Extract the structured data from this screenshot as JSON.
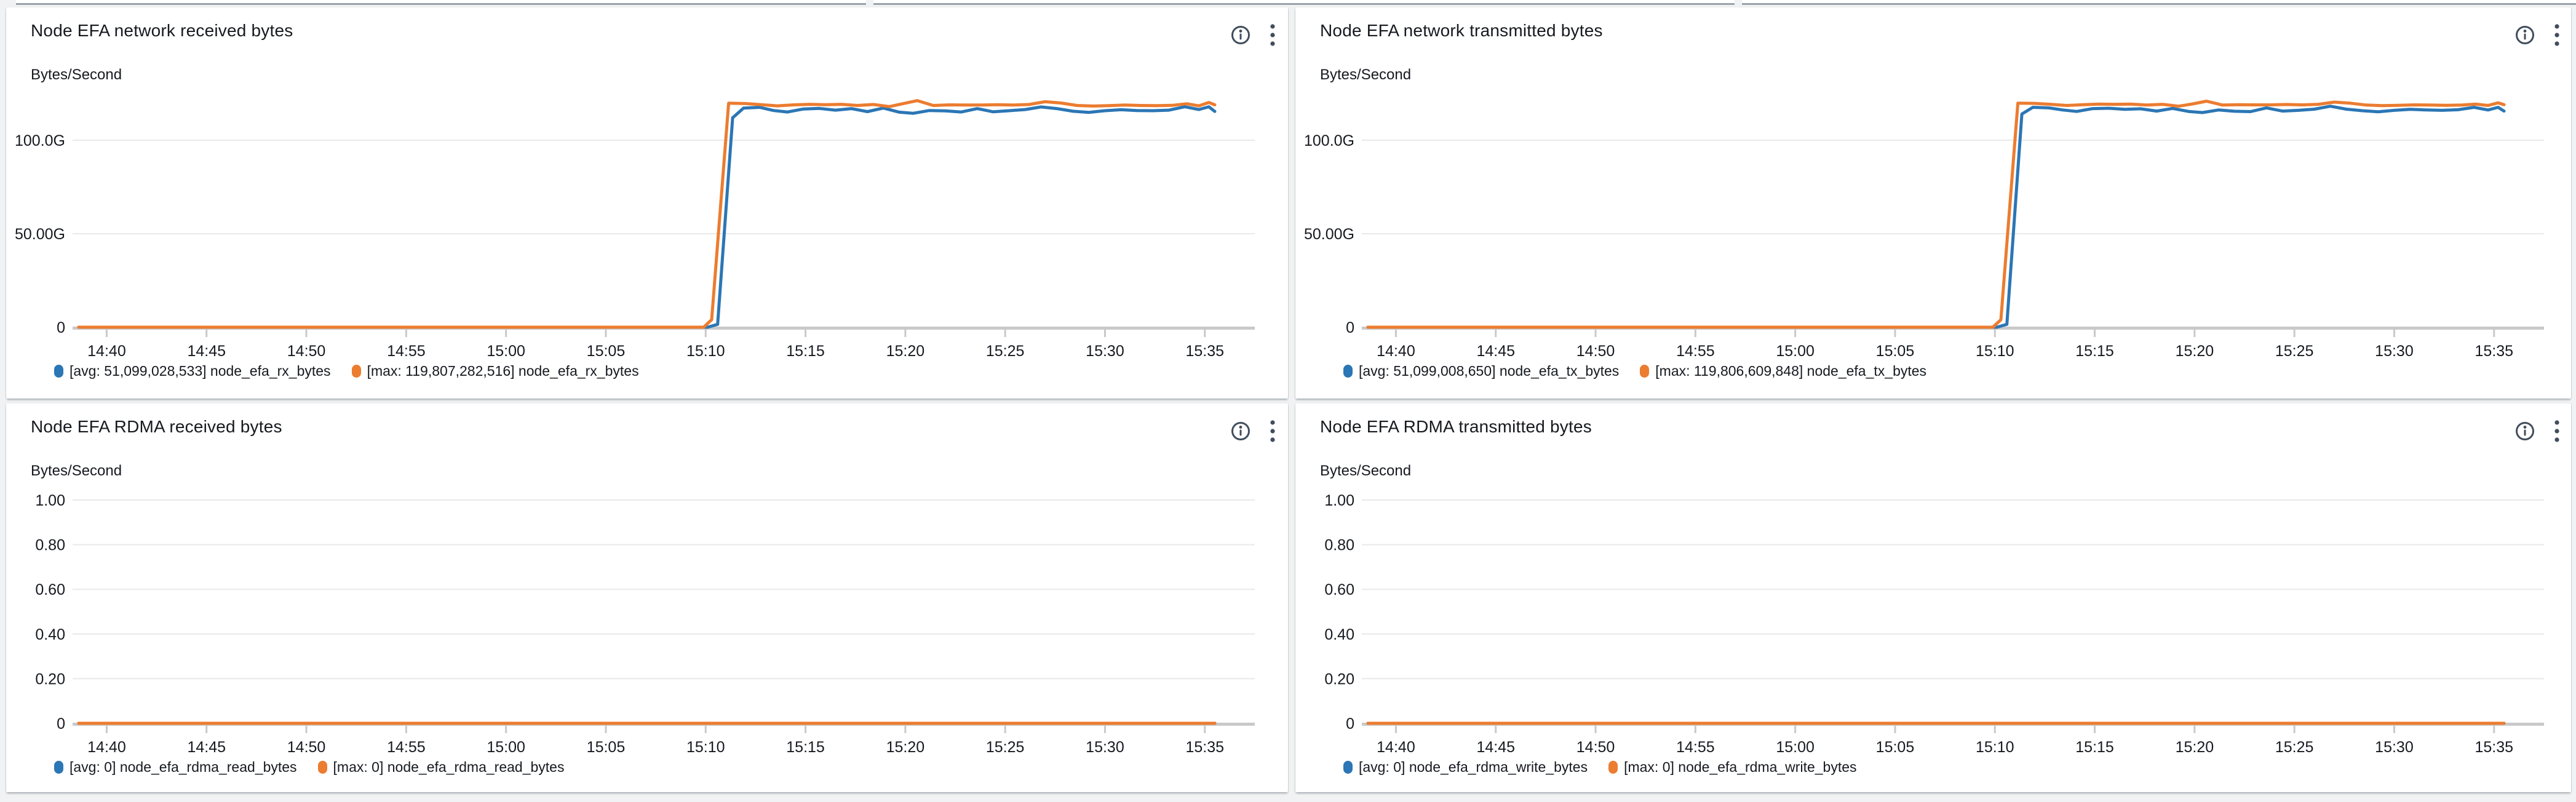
{
  "colors": {
    "page_bg": "#f1f2f3",
    "card_bg": "#ffffff",
    "series_avg": "#2b76b5",
    "series_max": "#ec7c30",
    "grid": "#e9e9e9",
    "axis": "#c9c9c9",
    "text": "#16191f",
    "icon": "#414d5c"
  },
  "chart_data": [
    {
      "type": "line",
      "title": "Node EFA network received bytes",
      "ylabel": "Bytes/Second",
      "ylim": [
        0,
        150000000000
      ],
      "y_ticks": [
        {
          "label": "100.0G",
          "value": 100
        },
        {
          "label": "50.00G",
          "value": 50
        },
        {
          "label": "0",
          "value": 0
        }
      ],
      "x_ticks": [
        "14:40",
        "14:45",
        "14:50",
        "14:55",
        "15:00",
        "15:05",
        "15:10",
        "15:15",
        "15:20",
        "15:25",
        "15:30",
        "15:35"
      ],
      "x_tick_times": [
        880,
        885,
        890,
        895,
        900,
        905,
        910,
        915,
        920,
        925,
        930,
        935
      ],
      "t_domain": [
        878.6,
        935.5
      ],
      "grid": true,
      "legend_position": "bottom",
      "legend": [
        {
          "label": "[avg: 51,099,028,533] node_efa_rx_bytes",
          "color": "#2b76b5"
        },
        {
          "label": "[max: 119,807,282,516] node_efa_rx_bytes",
          "color": "#ec7c30"
        }
      ],
      "value_unit": "G = 10^9 bytes/second",
      "series": [
        {
          "name": "avg node_efa_rx_bytes",
          "color": "#2b76b5",
          "points": [
            [
              878.6,
              0
            ],
            [
              909.5,
              0
            ],
            [
              910.1,
              0
            ],
            [
              910.6,
              1.5
            ],
            [
              911.35,
              112
            ],
            [
              911.9,
              117.2
            ],
            [
              912.7,
              117.6
            ],
            [
              913.4,
              115.9
            ],
            [
              914.1,
              115.1
            ],
            [
              914.9,
              116.7
            ],
            [
              915.7,
              117.0
            ],
            [
              916.5,
              116.1
            ],
            [
              917.3,
              116.9
            ],
            [
              918.1,
              115.3
            ],
            [
              918.9,
              117.2
            ],
            [
              919.7,
              115.0
            ],
            [
              920.4,
              114.4
            ],
            [
              921.2,
              115.9
            ],
            [
              922.0,
              115.7
            ],
            [
              922.8,
              115.1
            ],
            [
              923.6,
              116.9
            ],
            [
              924.4,
              115.2
            ],
            [
              925.2,
              115.8
            ],
            [
              926.0,
              116.4
            ],
            [
              926.8,
              117.8
            ],
            [
              927.6,
              116.9
            ],
            [
              928.4,
              115.5
            ],
            [
              929.2,
              114.9
            ],
            [
              930.0,
              115.8
            ],
            [
              930.8,
              116.3
            ],
            [
              931.6,
              115.9
            ],
            [
              932.4,
              115.8
            ],
            [
              933.2,
              116.1
            ],
            [
              934.0,
              117.9
            ],
            [
              934.7,
              116.4
            ],
            [
              935.2,
              117.9
            ],
            [
              935.5,
              115.4
            ]
          ]
        },
        {
          "name": "max node_efa_rx_bytes",
          "color": "#ec7c30",
          "points": [
            [
              878.6,
              0
            ],
            [
              909.3,
              0
            ],
            [
              909.9,
              0
            ],
            [
              910.3,
              4
            ],
            [
              911.15,
              119.8
            ],
            [
              912.0,
              119.6
            ],
            [
              912.8,
              119.0
            ],
            [
              913.6,
              118.4
            ],
            [
              914.4,
              118.9
            ],
            [
              915.2,
              119.2
            ],
            [
              916.0,
              119.0
            ],
            [
              916.8,
              119.2
            ],
            [
              917.6,
              118.6
            ],
            [
              918.4,
              119.1
            ],
            [
              919.2,
              118.0
            ],
            [
              919.9,
              119.6
            ],
            [
              920.6,
              121.2
            ],
            [
              921.4,
              118.6
            ],
            [
              922.2,
              118.9
            ],
            [
              923.0,
              118.8
            ],
            [
              923.8,
              118.8
            ],
            [
              924.6,
              119.0
            ],
            [
              925.4,
              118.8
            ],
            [
              926.2,
              119.1
            ],
            [
              927.0,
              120.6
            ],
            [
              927.8,
              119.9
            ],
            [
              928.6,
              118.6
            ],
            [
              929.4,
              118.3
            ],
            [
              930.2,
              118.5
            ],
            [
              931.0,
              118.8
            ],
            [
              931.8,
              118.6
            ],
            [
              932.6,
              118.5
            ],
            [
              933.4,
              118.7
            ],
            [
              934.1,
              119.5
            ],
            [
              934.7,
              118.4
            ],
            [
              935.2,
              120.2
            ],
            [
              935.5,
              118.9
            ]
          ]
        }
      ]
    },
    {
      "type": "line",
      "title": "Node EFA network transmitted bytes",
      "ylabel": "Bytes/Second",
      "ylim": [
        0,
        150000000000
      ],
      "y_ticks": [
        {
          "label": "100.0G",
          "value": 100
        },
        {
          "label": "50.00G",
          "value": 50
        },
        {
          "label": "0",
          "value": 0
        }
      ],
      "x_ticks": [
        "14:40",
        "14:45",
        "14:50",
        "14:55",
        "15:00",
        "15:05",
        "15:10",
        "15:15",
        "15:20",
        "15:25",
        "15:30",
        "15:35"
      ],
      "x_tick_times": [
        880,
        885,
        890,
        895,
        900,
        905,
        910,
        915,
        920,
        925,
        930,
        935
      ],
      "t_domain": [
        878.6,
        935.5
      ],
      "grid": true,
      "legend_position": "bottom",
      "legend": [
        {
          "label": "[avg: 51,099,008,650] node_efa_tx_bytes",
          "color": "#2b76b5"
        },
        {
          "label": "[max: 119,806,609,848] node_efa_tx_bytes",
          "color": "#ec7c30"
        }
      ],
      "value_unit": "G = 10^9 bytes/second",
      "series": [
        {
          "name": "avg node_efa_tx_bytes",
          "color": "#2b76b5",
          "points": [
            [
              878.6,
              0
            ],
            [
              909.5,
              0
            ],
            [
              910.1,
              0
            ],
            [
              910.6,
              1.5
            ],
            [
              911.35,
              114
            ],
            [
              911.9,
              117.6
            ],
            [
              912.7,
              117.3
            ],
            [
              913.4,
              116.2
            ],
            [
              914.1,
              115.4
            ],
            [
              914.9,
              116.9
            ],
            [
              915.7,
              117.1
            ],
            [
              916.5,
              116.5
            ],
            [
              917.3,
              116.8
            ],
            [
              918.1,
              115.6
            ],
            [
              918.9,
              117.0
            ],
            [
              919.7,
              115.4
            ],
            [
              920.4,
              114.8
            ],
            [
              921.2,
              116.2
            ],
            [
              922.0,
              115.5
            ],
            [
              922.8,
              115.3
            ],
            [
              923.6,
              117.3
            ],
            [
              924.4,
              115.6
            ],
            [
              925.2,
              116.0
            ],
            [
              926.0,
              116.6
            ],
            [
              926.8,
              118.2
            ],
            [
              927.6,
              116.6
            ],
            [
              928.4,
              115.8
            ],
            [
              929.2,
              115.2
            ],
            [
              930.0,
              116.0
            ],
            [
              930.8,
              116.5
            ],
            [
              931.6,
              116.2
            ],
            [
              932.4,
              116.0
            ],
            [
              933.2,
              116.3
            ],
            [
              934.0,
              117.6
            ],
            [
              934.7,
              116.2
            ],
            [
              935.2,
              117.6
            ],
            [
              935.5,
              115.6
            ]
          ]
        },
        {
          "name": "max node_efa_tx_bytes",
          "color": "#ec7c30",
          "points": [
            [
              878.6,
              0
            ],
            [
              909.3,
              0
            ],
            [
              909.9,
              0
            ],
            [
              910.3,
              4
            ],
            [
              911.15,
              119.8
            ],
            [
              912.0,
              119.7
            ],
            [
              912.8,
              119.2
            ],
            [
              913.6,
              118.6
            ],
            [
              914.4,
              119.0
            ],
            [
              915.2,
              119.3
            ],
            [
              916.0,
              119.2
            ],
            [
              916.8,
              119.3
            ],
            [
              917.6,
              118.8
            ],
            [
              918.4,
              119.2
            ],
            [
              919.2,
              118.2
            ],
            [
              919.9,
              119.4
            ],
            [
              920.6,
              120.9
            ],
            [
              921.4,
              118.8
            ],
            [
              922.2,
              119.0
            ],
            [
              923.0,
              118.9
            ],
            [
              923.8,
              118.9
            ],
            [
              924.6,
              119.1
            ],
            [
              925.4,
              118.9
            ],
            [
              926.2,
              119.2
            ],
            [
              927.0,
              120.4
            ],
            [
              927.8,
              119.8
            ],
            [
              928.6,
              118.8
            ],
            [
              929.4,
              118.5
            ],
            [
              930.2,
              118.7
            ],
            [
              931.0,
              118.9
            ],
            [
              931.8,
              118.8
            ],
            [
              932.6,
              118.7
            ],
            [
              933.4,
              118.8
            ],
            [
              934.1,
              119.3
            ],
            [
              934.7,
              118.6
            ],
            [
              935.2,
              120.0
            ],
            [
              935.5,
              119.0
            ]
          ]
        }
      ]
    },
    {
      "type": "line",
      "title": "Node EFA RDMA received bytes",
      "ylabel": "Bytes/Second",
      "ylim": [
        0,
        1.1
      ],
      "y_ticks": [
        {
          "label": "1.00",
          "value": 1.0
        },
        {
          "label": "0.80",
          "value": 0.8
        },
        {
          "label": "0.60",
          "value": 0.6
        },
        {
          "label": "0.40",
          "value": 0.4
        },
        {
          "label": "0.20",
          "value": 0.2
        },
        {
          "label": "0",
          "value": 0
        }
      ],
      "x_ticks": [
        "14:40",
        "14:45",
        "14:50",
        "14:55",
        "15:00",
        "15:05",
        "15:10",
        "15:15",
        "15:20",
        "15:25",
        "15:30",
        "15:35"
      ],
      "x_tick_times": [
        880,
        885,
        890,
        895,
        900,
        905,
        910,
        915,
        920,
        925,
        930,
        935
      ],
      "t_domain": [
        878.6,
        935.5
      ],
      "grid": true,
      "legend_position": "bottom",
      "legend": [
        {
          "label": "[avg: 0] node_efa_rdma_read_bytes",
          "color": "#2b76b5"
        },
        {
          "label": "[max: 0] node_efa_rdma_read_bytes",
          "color": "#ec7c30"
        }
      ],
      "value_unit": "bytes/second",
      "series": [
        {
          "name": "avg node_efa_rdma_read_bytes",
          "color": "#2b76b5",
          "points": [
            [
              878.6,
              0
            ],
            [
              935.5,
              0
            ]
          ]
        },
        {
          "name": "max node_efa_rdma_read_bytes",
          "color": "#ec7c30",
          "points": [
            [
              878.6,
              0
            ],
            [
              935.5,
              0
            ]
          ]
        }
      ]
    },
    {
      "type": "line",
      "title": "Node EFA RDMA transmitted bytes",
      "ylabel": "Bytes/Second",
      "ylim": [
        0,
        1.1
      ],
      "y_ticks": [
        {
          "label": "1.00",
          "value": 1.0
        },
        {
          "label": "0.80",
          "value": 0.8
        },
        {
          "label": "0.60",
          "value": 0.6
        },
        {
          "label": "0.40",
          "value": 0.4
        },
        {
          "label": "0.20",
          "value": 0.2
        },
        {
          "label": "0",
          "value": 0
        }
      ],
      "x_ticks": [
        "14:40",
        "14:45",
        "14:50",
        "14:55",
        "15:00",
        "15:05",
        "15:10",
        "15:15",
        "15:20",
        "15:25",
        "15:30",
        "15:35"
      ],
      "x_tick_times": [
        880,
        885,
        890,
        895,
        900,
        905,
        910,
        915,
        920,
        925,
        930,
        935
      ],
      "t_domain": [
        878.6,
        935.5
      ],
      "grid": true,
      "legend_position": "bottom",
      "legend": [
        {
          "label": "[avg: 0] node_efa_rdma_write_bytes",
          "color": "#2b76b5"
        },
        {
          "label": "[max: 0] node_efa_rdma_write_bytes",
          "color": "#ec7c30"
        }
      ],
      "value_unit": "bytes/second",
      "series": [
        {
          "name": "avg node_efa_rdma_write_bytes",
          "color": "#2b76b5",
          "points": [
            [
              878.6,
              0
            ],
            [
              935.5,
              0
            ]
          ]
        },
        {
          "name": "max node_efa_rdma_write_bytes",
          "color": "#ec7c30",
          "points": [
            [
              878.6,
              0
            ],
            [
              935.5,
              0
            ]
          ]
        }
      ]
    }
  ]
}
